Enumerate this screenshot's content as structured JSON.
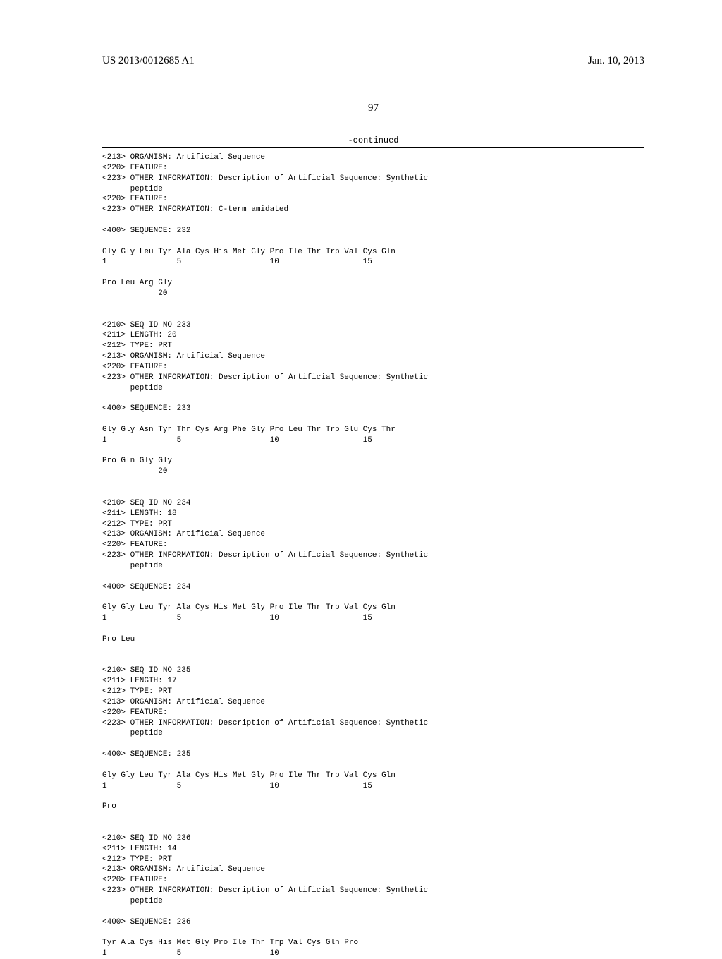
{
  "header": {
    "pub_number": "US 2013/0012685 A1",
    "pub_date": "Jan. 10, 2013"
  },
  "page_number": "97",
  "continued_label": "-continued",
  "seq_text": "<213> ORGANISM: Artificial Sequence\n<220> FEATURE:\n<223> OTHER INFORMATION: Description of Artificial Sequence: Synthetic\n      peptide\n<220> FEATURE:\n<223> OTHER INFORMATION: C-term amidated\n\n<400> SEQUENCE: 232\n\nGly Gly Leu Tyr Ala Cys His Met Gly Pro Ile Thr Trp Val Cys Gln\n1               5                   10                  15\n\nPro Leu Arg Gly\n            20\n\n\n<210> SEQ ID NO 233\n<211> LENGTH: 20\n<212> TYPE: PRT\n<213> ORGANISM: Artificial Sequence\n<220> FEATURE:\n<223> OTHER INFORMATION: Description of Artificial Sequence: Synthetic\n      peptide\n\n<400> SEQUENCE: 233\n\nGly Gly Asn Tyr Thr Cys Arg Phe Gly Pro Leu Thr Trp Glu Cys Thr\n1               5                   10                  15\n\nPro Gln Gly Gly\n            20\n\n\n<210> SEQ ID NO 234\n<211> LENGTH: 18\n<212> TYPE: PRT\n<213> ORGANISM: Artificial Sequence\n<220> FEATURE:\n<223> OTHER INFORMATION: Description of Artificial Sequence: Synthetic\n      peptide\n\n<400> SEQUENCE: 234\n\nGly Gly Leu Tyr Ala Cys His Met Gly Pro Ile Thr Trp Val Cys Gln\n1               5                   10                  15\n\nPro Leu\n\n\n<210> SEQ ID NO 235\n<211> LENGTH: 17\n<212> TYPE: PRT\n<213> ORGANISM: Artificial Sequence\n<220> FEATURE:\n<223> OTHER INFORMATION: Description of Artificial Sequence: Synthetic\n      peptide\n\n<400> SEQUENCE: 235\n\nGly Gly Leu Tyr Ala Cys His Met Gly Pro Ile Thr Trp Val Cys Gln\n1               5                   10                  15\n\nPro\n\n\n<210> SEQ ID NO 236\n<211> LENGTH: 14\n<212> TYPE: PRT\n<213> ORGANISM: Artificial Sequence\n<220> FEATURE:\n<223> OTHER INFORMATION: Description of Artificial Sequence: Synthetic\n      peptide\n\n<400> SEQUENCE: 236\n\nTyr Ala Cys His Met Gly Pro Ile Thr Trp Val Cys Gln Pro\n1               5                   10"
}
